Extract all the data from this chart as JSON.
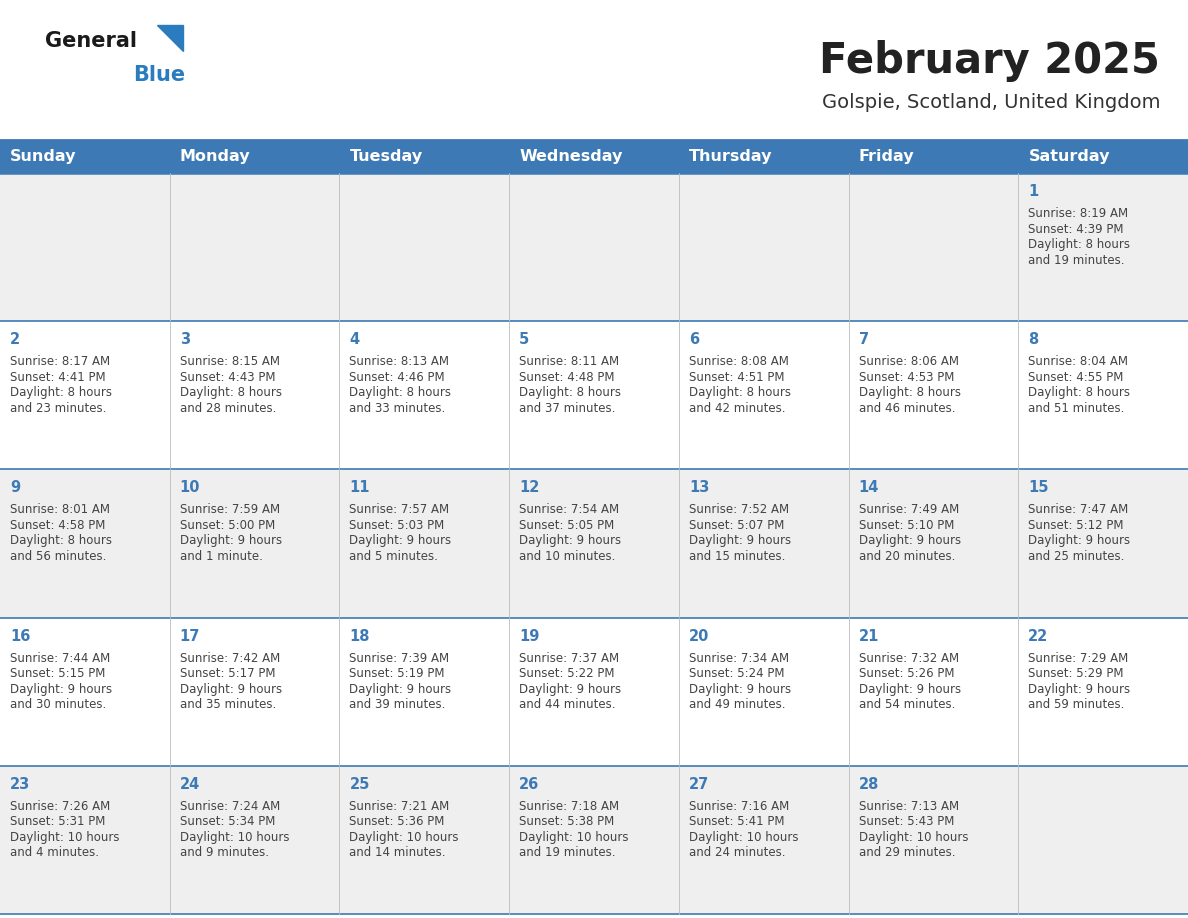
{
  "title": "February 2025",
  "subtitle": "Golspie, Scotland, United Kingdom",
  "header_bg_color": "#3d7ab5",
  "header_text_color": "#ffffff",
  "day_headers": [
    "Sunday",
    "Monday",
    "Tuesday",
    "Wednesday",
    "Thursday",
    "Friday",
    "Saturday"
  ],
  "cell_bg_even": "#efefef",
  "cell_bg_odd": "#ffffff",
  "cell_border_color": "#3d7ab5",
  "day_num_color": "#3d7ab5",
  "info_text_color": "#444444",
  "logo_color": "#2b7bbf",
  "title_color": "#222222",
  "subtitle_color": "#333333",
  "calendar_data": [
    {
      "day": 1,
      "row": 0,
      "col": 6,
      "sunrise": "8:19 AM",
      "sunset": "4:39 PM",
      "daylight_l1": "Daylight: 8 hours",
      "daylight_l2": "and 19 minutes."
    },
    {
      "day": 2,
      "row": 1,
      "col": 0,
      "sunrise": "8:17 AM",
      "sunset": "4:41 PM",
      "daylight_l1": "Daylight: 8 hours",
      "daylight_l2": "and 23 minutes."
    },
    {
      "day": 3,
      "row": 1,
      "col": 1,
      "sunrise": "8:15 AM",
      "sunset": "4:43 PM",
      "daylight_l1": "Daylight: 8 hours",
      "daylight_l2": "and 28 minutes."
    },
    {
      "day": 4,
      "row": 1,
      "col": 2,
      "sunrise": "8:13 AM",
      "sunset": "4:46 PM",
      "daylight_l1": "Daylight: 8 hours",
      "daylight_l2": "and 33 minutes."
    },
    {
      "day": 5,
      "row": 1,
      "col": 3,
      "sunrise": "8:11 AM",
      "sunset": "4:48 PM",
      "daylight_l1": "Daylight: 8 hours",
      "daylight_l2": "and 37 minutes."
    },
    {
      "day": 6,
      "row": 1,
      "col": 4,
      "sunrise": "8:08 AM",
      "sunset": "4:51 PM",
      "daylight_l1": "Daylight: 8 hours",
      "daylight_l2": "and 42 minutes."
    },
    {
      "day": 7,
      "row": 1,
      "col": 5,
      "sunrise": "8:06 AM",
      "sunset": "4:53 PM",
      "daylight_l1": "Daylight: 8 hours",
      "daylight_l2": "and 46 minutes."
    },
    {
      "day": 8,
      "row": 1,
      "col": 6,
      "sunrise": "8:04 AM",
      "sunset": "4:55 PM",
      "daylight_l1": "Daylight: 8 hours",
      "daylight_l2": "and 51 minutes."
    },
    {
      "day": 9,
      "row": 2,
      "col": 0,
      "sunrise": "8:01 AM",
      "sunset": "4:58 PM",
      "daylight_l1": "Daylight: 8 hours",
      "daylight_l2": "and 56 minutes."
    },
    {
      "day": 10,
      "row": 2,
      "col": 1,
      "sunrise": "7:59 AM",
      "sunset": "5:00 PM",
      "daylight_l1": "Daylight: 9 hours",
      "daylight_l2": "and 1 minute."
    },
    {
      "day": 11,
      "row": 2,
      "col": 2,
      "sunrise": "7:57 AM",
      "sunset": "5:03 PM",
      "daylight_l1": "Daylight: 9 hours",
      "daylight_l2": "and 5 minutes."
    },
    {
      "day": 12,
      "row": 2,
      "col": 3,
      "sunrise": "7:54 AM",
      "sunset": "5:05 PM",
      "daylight_l1": "Daylight: 9 hours",
      "daylight_l2": "and 10 minutes."
    },
    {
      "day": 13,
      "row": 2,
      "col": 4,
      "sunrise": "7:52 AM",
      "sunset": "5:07 PM",
      "daylight_l1": "Daylight: 9 hours",
      "daylight_l2": "and 15 minutes."
    },
    {
      "day": 14,
      "row": 2,
      "col": 5,
      "sunrise": "7:49 AM",
      "sunset": "5:10 PM",
      "daylight_l1": "Daylight: 9 hours",
      "daylight_l2": "and 20 minutes."
    },
    {
      "day": 15,
      "row": 2,
      "col": 6,
      "sunrise": "7:47 AM",
      "sunset": "5:12 PM",
      "daylight_l1": "Daylight: 9 hours",
      "daylight_l2": "and 25 minutes."
    },
    {
      "day": 16,
      "row": 3,
      "col": 0,
      "sunrise": "7:44 AM",
      "sunset": "5:15 PM",
      "daylight_l1": "Daylight: 9 hours",
      "daylight_l2": "and 30 minutes."
    },
    {
      "day": 17,
      "row": 3,
      "col": 1,
      "sunrise": "7:42 AM",
      "sunset": "5:17 PM",
      "daylight_l1": "Daylight: 9 hours",
      "daylight_l2": "and 35 minutes."
    },
    {
      "day": 18,
      "row": 3,
      "col": 2,
      "sunrise": "7:39 AM",
      "sunset": "5:19 PM",
      "daylight_l1": "Daylight: 9 hours",
      "daylight_l2": "and 39 minutes."
    },
    {
      "day": 19,
      "row": 3,
      "col": 3,
      "sunrise": "7:37 AM",
      "sunset": "5:22 PM",
      "daylight_l1": "Daylight: 9 hours",
      "daylight_l2": "and 44 minutes."
    },
    {
      "day": 20,
      "row": 3,
      "col": 4,
      "sunrise": "7:34 AM",
      "sunset": "5:24 PM",
      "daylight_l1": "Daylight: 9 hours",
      "daylight_l2": "and 49 minutes."
    },
    {
      "day": 21,
      "row": 3,
      "col": 5,
      "sunrise": "7:32 AM",
      "sunset": "5:26 PM",
      "daylight_l1": "Daylight: 9 hours",
      "daylight_l2": "and 54 minutes."
    },
    {
      "day": 22,
      "row": 3,
      "col": 6,
      "sunrise": "7:29 AM",
      "sunset": "5:29 PM",
      "daylight_l1": "Daylight: 9 hours",
      "daylight_l2": "and 59 minutes."
    },
    {
      "day": 23,
      "row": 4,
      "col": 0,
      "sunrise": "7:26 AM",
      "sunset": "5:31 PM",
      "daylight_l1": "Daylight: 10 hours",
      "daylight_l2": "and 4 minutes."
    },
    {
      "day": 24,
      "row": 4,
      "col": 1,
      "sunrise": "7:24 AM",
      "sunset": "5:34 PM",
      "daylight_l1": "Daylight: 10 hours",
      "daylight_l2": "and 9 minutes."
    },
    {
      "day": 25,
      "row": 4,
      "col": 2,
      "sunrise": "7:21 AM",
      "sunset": "5:36 PM",
      "daylight_l1": "Daylight: 10 hours",
      "daylight_l2": "and 14 minutes."
    },
    {
      "day": 26,
      "row": 4,
      "col": 3,
      "sunrise": "7:18 AM",
      "sunset": "5:38 PM",
      "daylight_l1": "Daylight: 10 hours",
      "daylight_l2": "and 19 minutes."
    },
    {
      "day": 27,
      "row": 4,
      "col": 4,
      "sunrise": "7:16 AM",
      "sunset": "5:41 PM",
      "daylight_l1": "Daylight: 10 hours",
      "daylight_l2": "and 24 minutes."
    },
    {
      "day": 28,
      "row": 4,
      "col": 5,
      "sunrise": "7:13 AM",
      "sunset": "5:43 PM",
      "daylight_l1": "Daylight: 10 hours",
      "daylight_l2": "and 29 minutes."
    }
  ]
}
